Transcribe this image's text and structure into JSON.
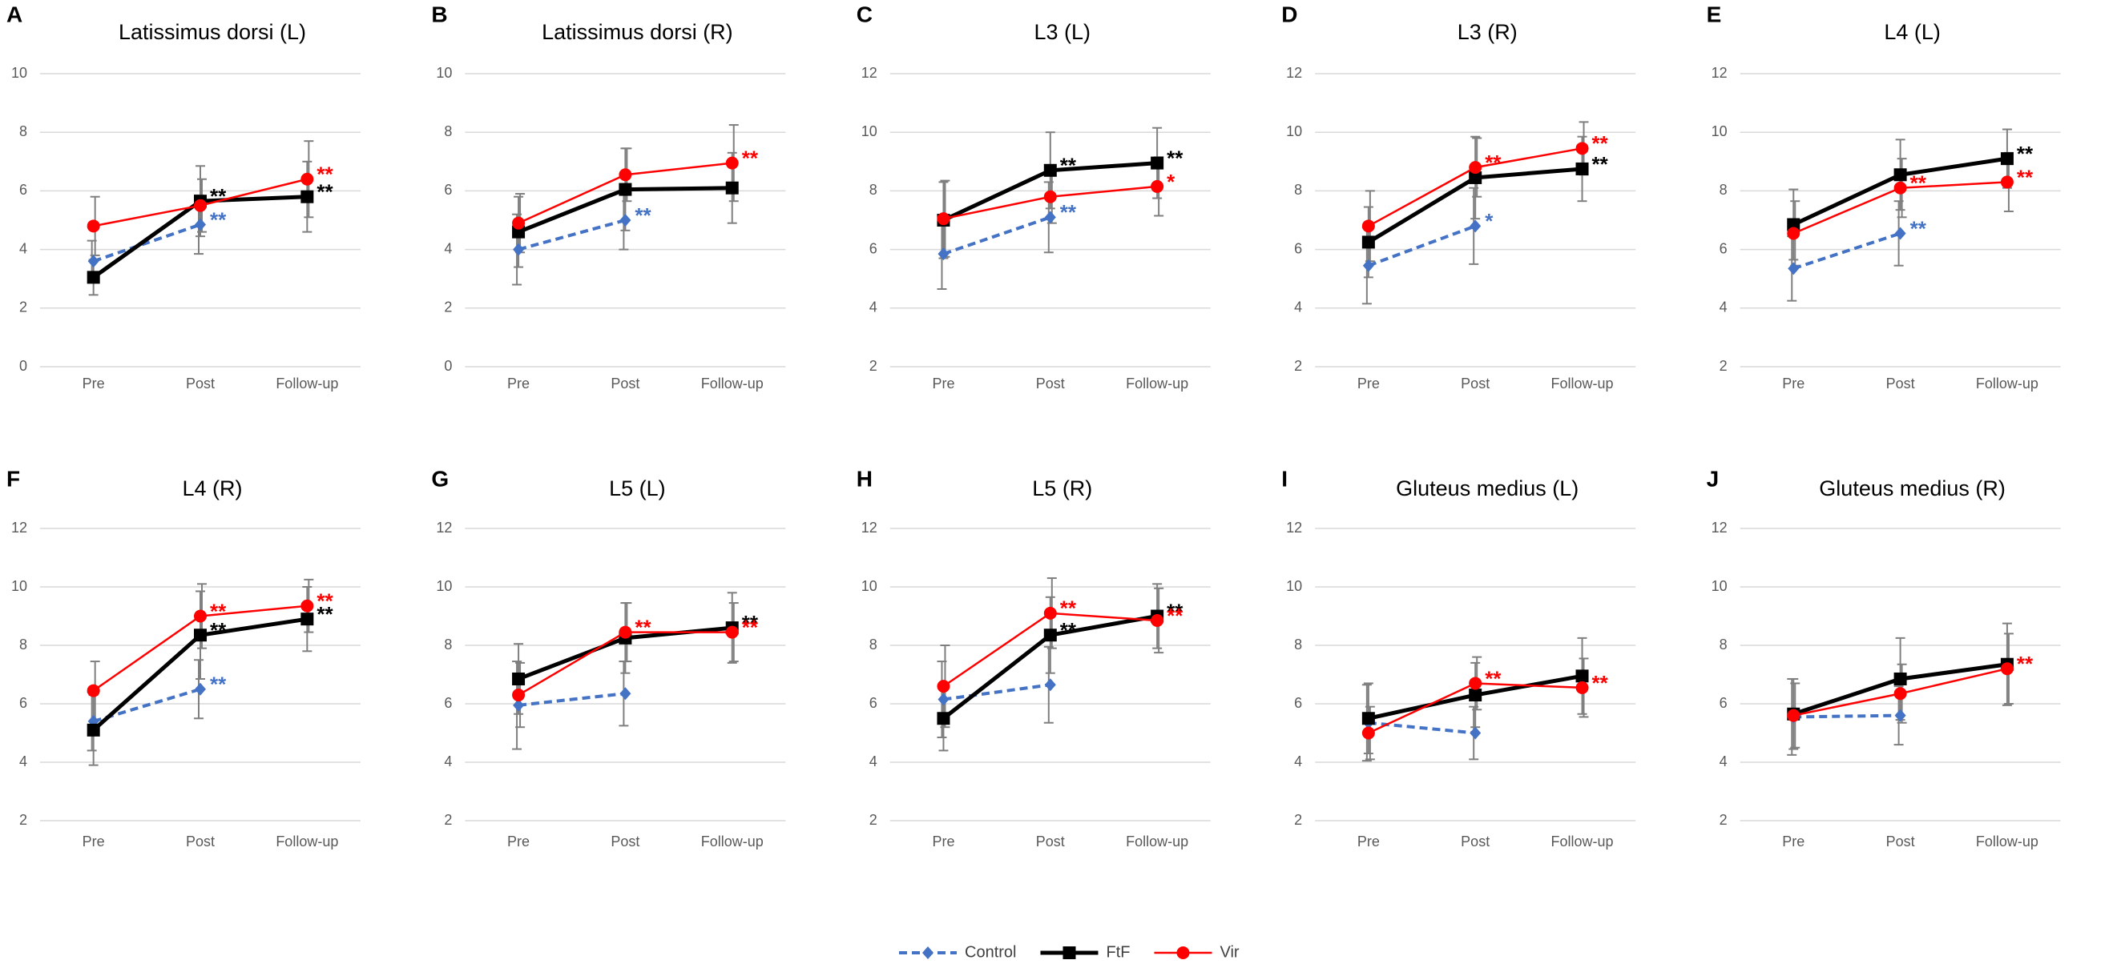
{
  "legend": {
    "items": [
      {
        "name": "Control",
        "color": "#4472c4",
        "dash": true,
        "marker": "diamond"
      },
      {
        "name": "FtF",
        "color": "#000000",
        "dash": false,
        "marker": "square"
      },
      {
        "name": "Vir",
        "color": "#ff0000",
        "dash": false,
        "marker": "circle"
      }
    ]
  },
  "chart_data": [
    {
      "type": "line",
      "panel": "A",
      "title": "Latissimus dorsi (L)",
      "categories": [
        "Pre",
        "Post",
        "Follow-up"
      ],
      "ylim": [
        0,
        10
      ],
      "yticks": [
        0,
        2,
        4,
        6,
        8,
        10
      ],
      "grid": true,
      "series": [
        {
          "name": "Control",
          "values": [
            3.6,
            4.85,
            null
          ],
          "errors": [
            0.7,
            1.0,
            null
          ],
          "significance": [
            null,
            "**",
            null
          ]
        },
        {
          "name": "FtF",
          "values": [
            3.05,
            5.65,
            5.8
          ],
          "errors": [
            0.6,
            1.2,
            1.2
          ],
          "significance": [
            null,
            "**",
            "**"
          ]
        },
        {
          "name": "Vir",
          "values": [
            4.8,
            5.5,
            6.4
          ],
          "errors": [
            1.0,
            0.9,
            1.3
          ],
          "significance": [
            null,
            null,
            "**"
          ]
        }
      ]
    },
    {
      "type": "line",
      "panel": "B",
      "title": "Latissimus dorsi (R)",
      "categories": [
        "Pre",
        "Post",
        "Follow-up"
      ],
      "ylim": [
        0,
        10
      ],
      "yticks": [
        0,
        2,
        4,
        6,
        8,
        10
      ],
      "grid": true,
      "series": [
        {
          "name": "Control",
          "values": [
            4.0,
            5.0,
            null
          ],
          "errors": [
            1.2,
            1.0,
            null
          ],
          "significance": [
            null,
            "**",
            null
          ]
        },
        {
          "name": "FtF",
          "values": [
            4.6,
            6.05,
            6.1
          ],
          "errors": [
            1.2,
            1.4,
            1.2
          ],
          "significance": [
            null,
            null,
            null
          ]
        },
        {
          "name": "Vir",
          "values": [
            4.9,
            6.55,
            6.95
          ],
          "errors": [
            1.0,
            0.9,
            1.3
          ],
          "significance": [
            null,
            null,
            "**"
          ]
        }
      ]
    },
    {
      "type": "line",
      "panel": "C",
      "title": "L3 (L)",
      "categories": [
        "Pre",
        "Post",
        "Follow-up"
      ],
      "ylim": [
        2,
        12
      ],
      "yticks": [
        2,
        4,
        6,
        8,
        10,
        12
      ],
      "grid": true,
      "series": [
        {
          "name": "Control",
          "values": [
            5.85,
            7.1,
            null
          ],
          "errors": [
            1.2,
            1.2,
            null
          ],
          "significance": [
            null,
            "**",
            null
          ]
        },
        {
          "name": "FtF",
          "values": [
            7.0,
            8.7,
            8.95
          ],
          "errors": [
            1.3,
            1.3,
            1.2
          ],
          "significance": [
            null,
            "**",
            "**"
          ]
        },
        {
          "name": "Vir",
          "values": [
            7.05,
            7.8,
            8.15
          ],
          "errors": [
            1.3,
            0.9,
            1.0
          ],
          "significance": [
            null,
            null,
            "*"
          ]
        }
      ]
    },
    {
      "type": "line",
      "panel": "D",
      "title": "L3 (R)",
      "categories": [
        "Pre",
        "Post",
        "Follow-up"
      ],
      "ylim": [
        2,
        12
      ],
      "yticks": [
        2,
        4,
        6,
        8,
        10,
        12
      ],
      "grid": true,
      "series": [
        {
          "name": "Control",
          "values": [
            5.45,
            6.8,
            null
          ],
          "errors": [
            1.3,
            1.3,
            null
          ],
          "significance": [
            null,
            "*",
            null
          ]
        },
        {
          "name": "FtF",
          "values": [
            6.25,
            8.45,
            8.75
          ],
          "errors": [
            1.2,
            1.4,
            1.1
          ],
          "significance": [
            null,
            null,
            "**"
          ]
        },
        {
          "name": "Vir",
          "values": [
            6.8,
            8.8,
            9.45
          ],
          "errors": [
            1.2,
            1.0,
            0.9
          ],
          "significance": [
            null,
            "**",
            "**"
          ]
        }
      ]
    },
    {
      "type": "line",
      "panel": "E",
      "title": "L4 (L)",
      "categories": [
        "Pre",
        "Post",
        "Follow-up"
      ],
      "ylim": [
        2,
        12
      ],
      "yticks": [
        2,
        4,
        6,
        8,
        10,
        12
      ],
      "grid": true,
      "series": [
        {
          "name": "Control",
          "values": [
            5.35,
            6.55,
            null
          ],
          "errors": [
            1.1,
            1.1,
            null
          ],
          "significance": [
            null,
            "**",
            null
          ]
        },
        {
          "name": "FtF",
          "values": [
            6.85,
            8.55,
            9.1
          ],
          "errors": [
            1.2,
            1.2,
            1.0
          ],
          "significance": [
            null,
            null,
            "**"
          ]
        },
        {
          "name": "Vir",
          "values": [
            6.55,
            8.1,
            8.3
          ],
          "errors": [
            1.1,
            1.0,
            1.0
          ],
          "significance": [
            null,
            "**",
            "**"
          ]
        }
      ]
    },
    {
      "type": "line",
      "panel": "F",
      "title": "L4 (R)",
      "categories": [
        "Pre",
        "Post",
        "Follow-up"
      ],
      "ylim": [
        2,
        12
      ],
      "yticks": [
        2,
        4,
        6,
        8,
        10,
        12
      ],
      "grid": true,
      "series": [
        {
          "name": "Control",
          "values": [
            5.4,
            6.5,
            null
          ],
          "errors": [
            1.0,
            1.0,
            null
          ],
          "significance": [
            null,
            "**",
            null
          ]
        },
        {
          "name": "FtF",
          "values": [
            5.1,
            8.35,
            8.9
          ],
          "errors": [
            1.2,
            1.5,
            1.1
          ],
          "significance": [
            null,
            "**",
            "**"
          ]
        },
        {
          "name": "Vir",
          "values": [
            6.45,
            9.0,
            9.35
          ],
          "errors": [
            1.0,
            1.1,
            0.9
          ],
          "significance": [
            null,
            "**",
            "**"
          ]
        }
      ]
    },
    {
      "type": "line",
      "panel": "G",
      "title": "L5 (L)",
      "categories": [
        "Pre",
        "Post",
        "Follow-up"
      ],
      "ylim": [
        2,
        12
      ],
      "yticks": [
        2,
        4,
        6,
        8,
        10,
        12
      ],
      "grid": true,
      "series": [
        {
          "name": "Control",
          "values": [
            5.95,
            6.35,
            null
          ],
          "errors": [
            1.5,
            1.1,
            null
          ],
          "significance": [
            null,
            null,
            null
          ]
        },
        {
          "name": "FtF",
          "values": [
            6.85,
            8.25,
            8.6
          ],
          "errors": [
            1.2,
            1.2,
            1.2
          ],
          "significance": [
            null,
            null,
            "**"
          ]
        },
        {
          "name": "Vir",
          "values": [
            6.3,
            8.45,
            8.45
          ],
          "errors": [
            1.1,
            1.0,
            1.0
          ],
          "significance": [
            null,
            "**",
            "**"
          ]
        }
      ]
    },
    {
      "type": "line",
      "panel": "H",
      "title": "L5 (R)",
      "categories": [
        "Pre",
        "Post",
        "Follow-up"
      ],
      "ylim": [
        2,
        12
      ],
      "yticks": [
        2,
        4,
        6,
        8,
        10,
        12
      ],
      "grid": true,
      "series": [
        {
          "name": "Control",
          "values": [
            6.15,
            6.65,
            null
          ],
          "errors": [
            1.3,
            1.3,
            null
          ],
          "significance": [
            null,
            null,
            null
          ]
        },
        {
          "name": "FtF",
          "values": [
            5.5,
            8.35,
            9.0
          ],
          "errors": [
            1.1,
            1.3,
            1.1
          ],
          "significance": [
            null,
            "**",
            "**"
          ]
        },
        {
          "name": "Vir",
          "values": [
            6.6,
            9.1,
            8.85
          ],
          "errors": [
            1.4,
            1.2,
            1.1
          ],
          "significance": [
            null,
            "**",
            "**"
          ]
        }
      ]
    },
    {
      "type": "line",
      "panel": "I",
      "title": "Gluteus medius (L)",
      "categories": [
        "Pre",
        "Post",
        "Follow-up"
      ],
      "ylim": [
        2,
        12
      ],
      "yticks": [
        2,
        4,
        6,
        8,
        10,
        12
      ],
      "grid": true,
      "series": [
        {
          "name": "Control",
          "values": [
            5.35,
            5.0,
            null
          ],
          "errors": [
            1.3,
            0.9,
            null
          ],
          "significance": [
            null,
            null,
            null
          ]
        },
        {
          "name": "FtF",
          "values": [
            5.5,
            6.3,
            6.95
          ],
          "errors": [
            1.2,
            1.1,
            1.3
          ],
          "significance": [
            null,
            null,
            null
          ]
        },
        {
          "name": "Vir",
          "values": [
            5.0,
            6.7,
            6.55
          ],
          "errors": [
            0.9,
            0.9,
            1.0
          ],
          "significance": [
            null,
            "**",
            "**"
          ]
        }
      ]
    },
    {
      "type": "line",
      "panel": "J",
      "title": "Gluteus medius (R)",
      "categories": [
        "Pre",
        "Post",
        "Follow-up"
      ],
      "ylim": [
        2,
        12
      ],
      "yticks": [
        2,
        4,
        6,
        8,
        10,
        12
      ],
      "grid": true,
      "series": [
        {
          "name": "Control",
          "values": [
            5.55,
            5.6,
            null
          ],
          "errors": [
            1.3,
            1.0,
            null
          ],
          "significance": [
            null,
            null,
            null
          ]
        },
        {
          "name": "FtF",
          "values": [
            5.65,
            6.85,
            7.35
          ],
          "errors": [
            1.2,
            1.4,
            1.4
          ],
          "significance": [
            null,
            null,
            null
          ]
        },
        {
          "name": "Vir",
          "values": [
            5.6,
            6.35,
            7.2
          ],
          "errors": [
            1.1,
            1.0,
            1.2
          ],
          "significance": [
            null,
            null,
            "**"
          ]
        }
      ]
    }
  ]
}
